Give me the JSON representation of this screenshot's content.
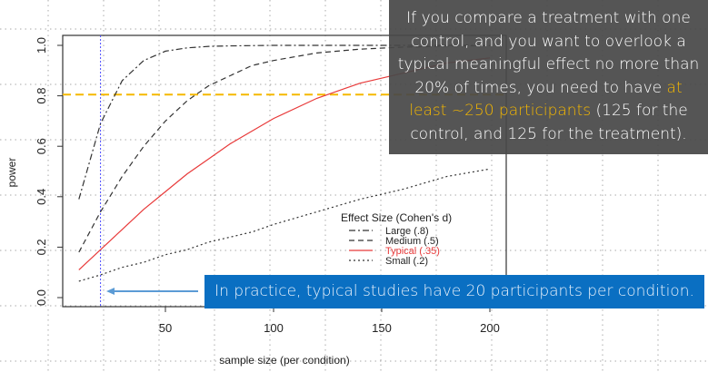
{
  "chart_data": {
    "type": "line",
    "xlabel": "sample size (per condition)",
    "ylabel": "power",
    "xlim": [
      0,
      205
    ],
    "ylim": [
      0,
      1.0
    ],
    "xticks": [
      "50",
      "100",
      "150",
      "200"
    ],
    "yticks": [
      "0.0",
      "0.2",
      "0.4",
      "0.6",
      "0.8",
      "1.0"
    ],
    "x": [
      10,
      20,
      30,
      40,
      50,
      60,
      70,
      80,
      90,
      100,
      120,
      140,
      160,
      180,
      200
    ],
    "series": [
      {
        "name": "Large (.8)",
        "dash": "dashdot",
        "color": "#333333",
        "values": [
          0.39,
          0.69,
          0.86,
          0.94,
          0.977,
          0.99,
          0.996,
          0.998,
          0.999,
          1.0,
          1.0,
          1.0,
          1.0,
          1.0,
          1.0
        ]
      },
      {
        "name": "Medium (.5)",
        "dash": "dashed",
        "color": "#333333",
        "values": [
          0.18,
          0.34,
          0.48,
          0.6,
          0.7,
          0.78,
          0.84,
          0.88,
          0.92,
          0.94,
          0.97,
          0.985,
          0.993,
          0.997,
          0.999
        ]
      },
      {
        "name": "Typical (.35)",
        "dash": "solid",
        "color": "#e83a3a",
        "values": [
          0.11,
          0.19,
          0.27,
          0.35,
          0.42,
          0.49,
          0.55,
          0.61,
          0.66,
          0.71,
          0.79,
          0.85,
          0.89,
          0.93,
          0.95
        ]
      },
      {
        "name": "Small (.2)",
        "dash": "dotted",
        "color": "#333333",
        "values": [
          0.065,
          0.09,
          0.12,
          0.14,
          0.17,
          0.19,
          0.22,
          0.24,
          0.26,
          0.29,
          0.34,
          0.39,
          0.43,
          0.48,
          0.51
        ]
      }
    ],
    "legend_title": "Effect Size (Cohen's d)",
    "legend_position": "bottom-right",
    "reference_lines": {
      "power_threshold": 0.805,
      "threshold_color": "#f5b800",
      "typical_sample": 20,
      "sample_line_color": "#4a4aff"
    }
  },
  "callout": {
    "text_before": "If you compare a treatment with one control, and you want to overlook a typical meaningful effect no more than 20% of times, you need to have ",
    "highlight": "at least ~250 participants",
    "text_after": " (125 for the control, and 125 for the treatment).",
    "highlight_color": "#f5b800"
  },
  "banner": {
    "text": "In practice, typical studies have 20 participants per condition.",
    "color": "#0a6fc2"
  }
}
